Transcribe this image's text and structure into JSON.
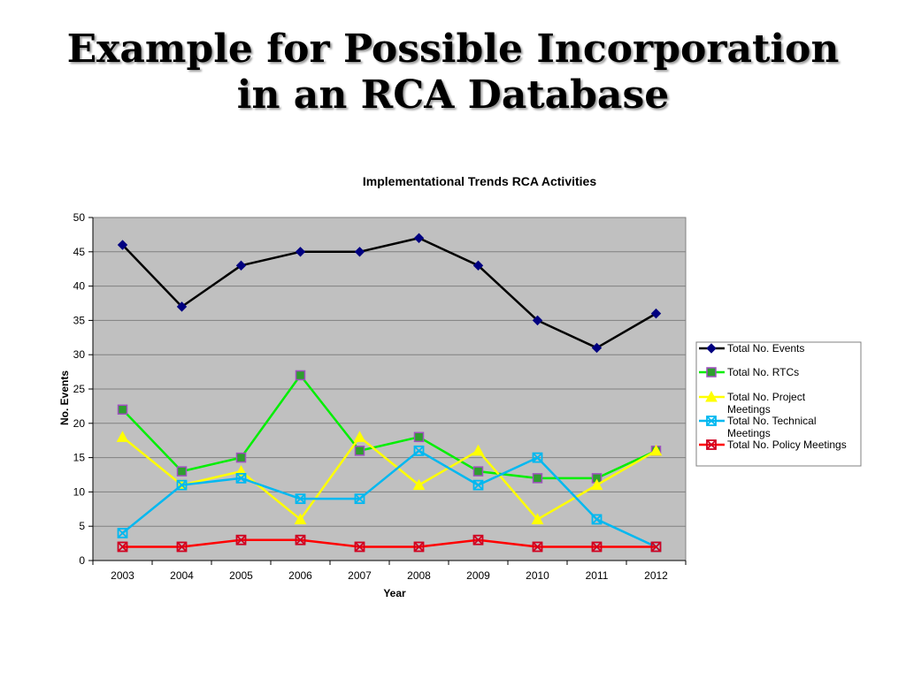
{
  "slide": {
    "title_line1": "Example for Possible Incorporation",
    "title_line2": "in an RCA Database"
  },
  "chart_data": {
    "type": "line",
    "title": "Implementational Trends RCA Activities",
    "xlabel": "Year",
    "ylabel": "No. Events",
    "categories": [
      "2003",
      "2004",
      "2005",
      "2006",
      "2007",
      "2008",
      "2009",
      "2010",
      "2011",
      "2012"
    ],
    "ylim": [
      0,
      50
    ],
    "yticks": [
      0,
      5,
      10,
      15,
      20,
      25,
      30,
      35,
      40,
      45,
      50
    ],
    "grid": true,
    "plot_background": "#c0c0c0",
    "legend_position": "right",
    "series": [
      {
        "name": "Total No. Events",
        "legend_lines": [
          "Total No. Events"
        ],
        "values": [
          46,
          37,
          43,
          45,
          45,
          47,
          43,
          35,
          31,
          36
        ],
        "color": "#000000",
        "marker": "diamond",
        "marker_color": "#000080"
      },
      {
        "name": "Total No. RTCs",
        "legend_lines": [
          "Total No. RTCs"
        ],
        "values": [
          22,
          13,
          15,
          27,
          16,
          18,
          13,
          12,
          12,
          16
        ],
        "color": "#00ee00",
        "marker": "square",
        "marker_color": "#2e9e2e",
        "marker_edge": "#a050c0"
      },
      {
        "name": "Total No. Project Meetings",
        "legend_lines": [
          "Total No. Project",
          "Meetings"
        ],
        "values": [
          18,
          11,
          13,
          6,
          18,
          11,
          16,
          6,
          11,
          16
        ],
        "color": "#ffff00",
        "marker": "triangle",
        "marker_color": "#ffff00"
      },
      {
        "name": "Total No. Technical Meetings",
        "legend_lines": [
          "Total No. Technical",
          "Meetings"
        ],
        "values": [
          4,
          11,
          12,
          9,
          9,
          16,
          11,
          15,
          6,
          2
        ],
        "color": "#00b8f0",
        "marker": "x-square",
        "marker_color": "#00b8f0"
      },
      {
        "name": "Total No. Policy Meetings",
        "legend_lines": [
          "Total No. Policy Meetings"
        ],
        "values": [
          2,
          2,
          3,
          3,
          2,
          2,
          3,
          2,
          2,
          2
        ],
        "color": "#ff0000",
        "marker": "x-square",
        "marker_color": "#d00020"
      }
    ]
  }
}
